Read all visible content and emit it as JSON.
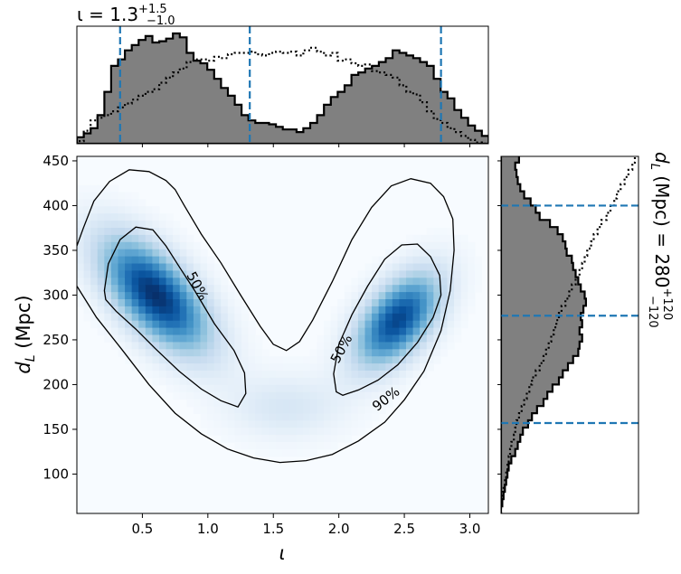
{
  "chart_data": {
    "type": "heatmap",
    "main": {
      "xlabel": "ι",
      "ylabel_main": "d",
      "ylabel_sub": "L",
      "ylabel_unit": " (Mpc)",
      "xlim": [
        0.0,
        3.14159
      ],
      "ylim": [
        56,
        455
      ],
      "xticks": [
        0.5,
        1.0,
        1.5,
        2.0,
        2.5,
        3.0
      ],
      "xtick_labels": [
        "0.5",
        "1.0",
        "1.5",
        "2.0",
        "2.5",
        "3.0"
      ],
      "yticks": [
        100,
        150,
        200,
        250,
        300,
        350,
        400,
        450
      ],
      "ytick_labels": [
        "100",
        "150",
        "200",
        "250",
        "300",
        "350",
        "400",
        "450"
      ],
      "colormap": "Blues",
      "density_modes": [
        {
          "x": 0.6,
          "y": 295,
          "relative_peak": 1.0
        },
        {
          "x": 2.4,
          "y": 270,
          "relative_peak": 0.9
        }
      ],
      "contours": [
        {
          "label": "50%",
          "label_positions": [
            {
              "x": 0.92,
              "y": 310
            },
            {
              "x": 2.02,
              "y": 240
            }
          ]
        },
        {
          "label": "90%",
          "label_positions": [
            {
              "x": 2.36,
              "y": 184
            }
          ]
        }
      ]
    },
    "top_marginal": {
      "title_main": "ι = 1.3",
      "title_sup": "+1.5",
      "title_sub": "−1.0",
      "median": 1.32,
      "credible_interval": [
        0.33,
        2.78
      ],
      "bin_edges_start": 0.0,
      "bin_width": 0.0524,
      "posterior_counts": [
        5,
        8,
        12,
        22,
        40,
        60,
        65,
        72,
        76,
        80,
        83,
        78,
        79,
        81,
        85,
        82,
        70,
        64,
        62,
        57,
        50,
        43,
        37,
        30,
        22,
        18,
        16,
        16,
        15,
        13,
        11,
        11,
        9,
        12,
        16,
        22,
        30,
        36,
        40,
        45,
        53,
        55,
        58,
        60,
        63,
        66,
        72,
        70,
        68,
        66,
        63,
        60,
        50,
        40,
        35,
        26,
        20,
        14,
        10,
        6
      ],
      "prior_counts": [
        2,
        10,
        18,
        20,
        22,
        25,
        28,
        31,
        34,
        37,
        40,
        42,
        47,
        51,
        55,
        58,
        63,
        65,
        65,
        64,
        67,
        66,
        69,
        70,
        70,
        71,
        69,
        68,
        70,
        71,
        70,
        71,
        68,
        72,
        74,
        71,
        68,
        70,
        64,
        65,
        62,
        60,
        61,
        56,
        55,
        53,
        51,
        45,
        40,
        38,
        32,
        25,
        19,
        16,
        12,
        9,
        6,
        3,
        1,
        0
      ]
    },
    "right_marginal": {
      "label_main": "d",
      "label_sub": "L",
      "label_text": " (Mpc) = 280",
      "label_sup": "+120",
      "label_sub2": "−120",
      "median": 277,
      "credible_interval": [
        157,
        400
      ],
      "bin_edges_start": 56,
      "bin_width": 8,
      "posterior_counts": [
        0,
        1,
        2,
        3,
        4,
        5,
        6,
        8,
        11,
        13,
        15,
        17,
        21,
        24,
        28,
        33,
        36,
        40,
        45,
        48,
        52,
        56,
        60,
        61,
        63,
        61,
        63,
        62,
        64,
        66,
        65,
        62,
        60,
        58,
        56,
        55,
        51,
        50,
        48,
        44,
        38,
        30,
        27,
        23,
        18,
        15,
        13,
        12,
        11,
        14
      ],
      "prior_counts": [
        0,
        0,
        1,
        2,
        3,
        4,
        5,
        6,
        7,
        8,
        10,
        11,
        12,
        14,
        16,
        18,
        20,
        22,
        24,
        27,
        30,
        33,
        35,
        37,
        39,
        41,
        43,
        45,
        47,
        50,
        53,
        55,
        58,
        61,
        63,
        65,
        67,
        70,
        72,
        75,
        78,
        82,
        85,
        88,
        90,
        93,
        96,
        99,
        102,
        104
      ]
    }
  }
}
